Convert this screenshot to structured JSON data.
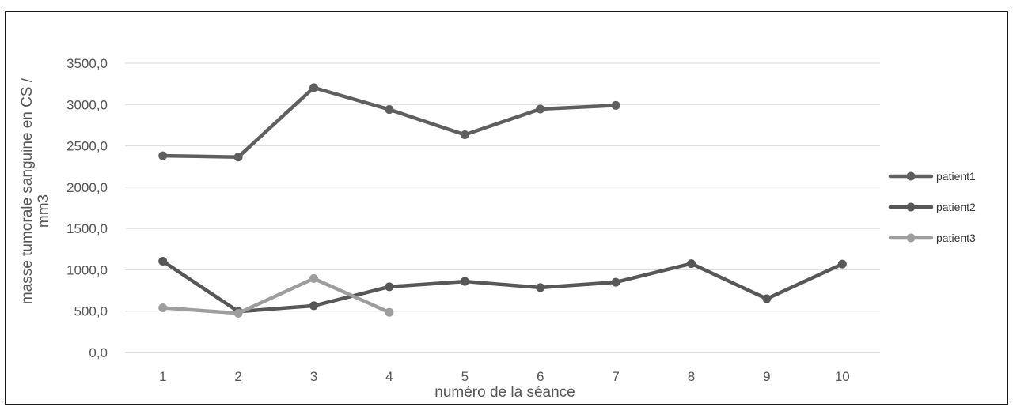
{
  "chart_data": {
    "type": "line",
    "title": "",
    "xlabel": "numéro de la séance",
    "ylabel": "masse tumorale sanguine en CS / mm3",
    "ylabel_lines": [
      "masse tumorale sanguine en CS /",
      "mm3"
    ],
    "categories": [
      "1",
      "2",
      "3",
      "4",
      "5",
      "6",
      "7",
      "8",
      "9",
      "10"
    ],
    "ylim": [
      0,
      3500
    ],
    "yticks": [
      "0,0",
      "500,0",
      "1000,0",
      "1500,0",
      "2000,0",
      "2500,0",
      "3000,0",
      "3500,0"
    ],
    "grid": "horizontal",
    "legend_position": "right",
    "series": [
      {
        "name": "patient1",
        "color": "#5f5f5f",
        "values": [
          2380,
          2365,
          3205,
          2940,
          2635,
          2945,
          2990,
          null,
          null,
          null
        ]
      },
      {
        "name": "patient2",
        "color": "#575757",
        "values": [
          1105,
          495,
          565,
          795,
          860,
          785,
          850,
          1075,
          650,
          1070
        ]
      },
      {
        "name": "patient3",
        "color": "#9e9e9e",
        "values": [
          540,
          475,
          895,
          485,
          null,
          null,
          null,
          null,
          null,
          null
        ]
      }
    ]
  }
}
